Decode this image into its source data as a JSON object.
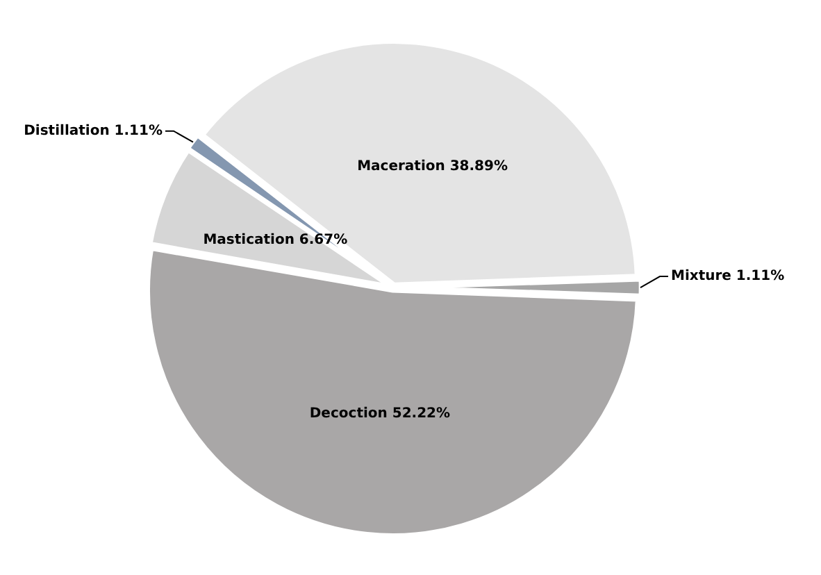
{
  "chart_data": {
    "type": "pie",
    "categories": [
      "Maceration",
      "Mixture",
      "Decoction",
      "Mastication",
      "Distillation"
    ],
    "values": [
      38.89,
      1.11,
      52.22,
      6.67,
      1.11
    ],
    "value_labels": [
      "38.89%",
      "1.11%",
      "52.22%",
      "6.67%",
      "1.11%"
    ],
    "colors": [
      "#e4e4e4",
      "#a6a6a6",
      "#a9a7a7",
      "#d6d6d6",
      "#8497b0"
    ],
    "legend": false
  }
}
